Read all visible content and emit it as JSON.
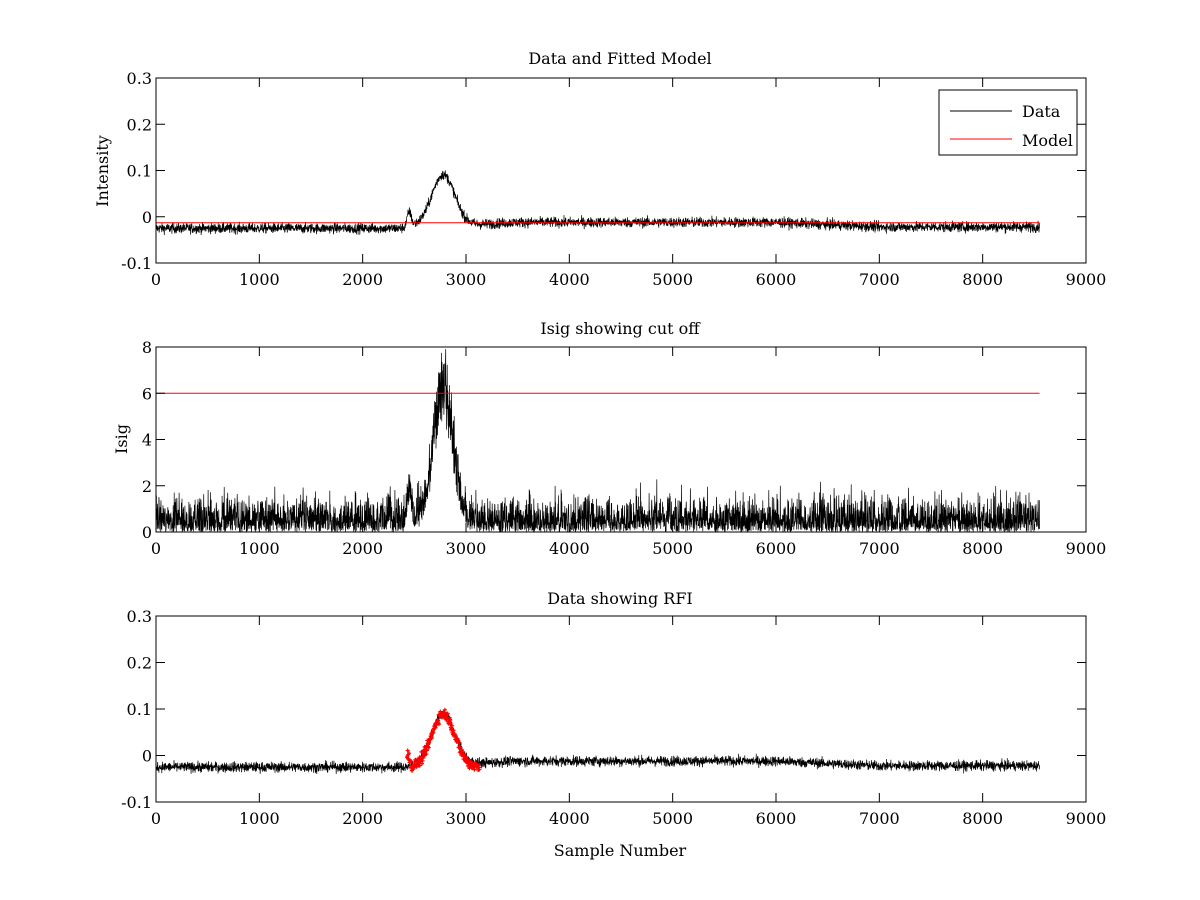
{
  "figure": {
    "background": "#ffffff"
  },
  "chart_data": [
    {
      "type": "line",
      "title": "Data and Fitted Model",
      "xlabel": "",
      "ylabel": "Intensity",
      "xlim": [
        0,
        9000
      ],
      "ylim": [
        -0.1,
        0.3
      ],
      "xticks": [
        0,
        1000,
        2000,
        3000,
        4000,
        5000,
        6000,
        7000,
        8000,
        9000
      ],
      "yticks": [
        -0.1,
        0,
        0.1,
        0.2,
        0.3
      ],
      "ytick_labels": [
        "-0.1",
        "0",
        "0.1",
        "0.2",
        "0.3"
      ],
      "legend": {
        "placement": "top-right",
        "entries": [
          "Data",
          "Model"
        ]
      },
      "series": [
        {
          "name": "Data",
          "color": "#000000",
          "kind": "noisy",
          "x_range": [
            0,
            8550
          ],
          "baseline": [
            [
              0,
              -0.025
            ],
            [
              2400,
              -0.025
            ],
            [
              2450,
              -0.02
            ],
            [
              3000,
              -0.018
            ],
            [
              3500,
              -0.012
            ],
            [
              6000,
              -0.012
            ],
            [
              7000,
              -0.022
            ],
            [
              8550,
              -0.022
            ]
          ],
          "noise_amplitude": 0.01,
          "features": [
            {
              "type": "gaussian",
              "center": 2780,
              "width": 110,
              "height": 0.11
            },
            {
              "type": "gaussian",
              "center": 2450,
              "width": 20,
              "height": 0.03
            }
          ]
        },
        {
          "name": "Model",
          "color": "#ff0000",
          "kind": "segments",
          "points": [
            [
              0,
              -0.013
            ],
            [
              2450,
              -0.013
            ],
            [
              2450,
              -0.013
            ],
            [
              8550,
              -0.013
            ]
          ]
        }
      ]
    },
    {
      "type": "line",
      "title": "Isig showing cut off",
      "xlabel": "",
      "ylabel": "Isig",
      "xlim": [
        0,
        9000
      ],
      "ylim": [
        0,
        8
      ],
      "xticks": [
        0,
        1000,
        2000,
        3000,
        4000,
        5000,
        6000,
        7000,
        8000,
        9000
      ],
      "yticks": [
        0,
        2,
        4,
        6,
        8
      ],
      "ytick_labels": [
        "0",
        "2",
        "4",
        "6",
        "8"
      ],
      "series": [
        {
          "color": "#000000",
          "kind": "noisy-positive",
          "x_range": [
            0,
            8550
          ],
          "noise_amplitude": 1.3,
          "features": [
            {
              "type": "gaussian",
              "center": 2780,
              "width": 90,
              "height": 6.5
            },
            {
              "type": "gaussian",
              "center": 2450,
              "width": 20,
              "height": 1.5
            }
          ]
        },
        {
          "color": "#ff0000",
          "kind": "segments",
          "points": [
            [
              0,
              6
            ],
            [
              8550,
              6
            ]
          ]
        }
      ]
    },
    {
      "type": "line",
      "title": "Data showing RFI",
      "xlabel": "Sample Number",
      "ylabel": "",
      "xlim": [
        0,
        9000
      ],
      "ylim": [
        -0.1,
        0.3
      ],
      "xticks": [
        0,
        1000,
        2000,
        3000,
        4000,
        5000,
        6000,
        7000,
        8000,
        9000
      ],
      "yticks": [
        -0.1,
        0,
        0.1,
        0.2,
        0.3
      ],
      "ytick_labels": [
        "-0.1",
        "0",
        "0.1",
        "0.2",
        "0.3"
      ],
      "series": [
        {
          "color": "#000000",
          "kind": "noisy",
          "x_range": [
            0,
            8550
          ],
          "baseline": [
            [
              0,
              -0.025
            ],
            [
              2400,
              -0.025
            ],
            [
              3000,
              -0.018
            ],
            [
              3500,
              -0.012
            ],
            [
              6000,
              -0.012
            ],
            [
              7000,
              -0.022
            ],
            [
              8550,
              -0.022
            ]
          ],
          "noise_amplitude": 0.01,
          "features": [
            {
              "type": "gaussian",
              "center": 2780,
              "width": 110,
              "height": 0.11
            }
          ]
        },
        {
          "color": "#ff0000",
          "kind": "markers",
          "x_range": [
            2430,
            3130
          ],
          "baseline": [
            [
              2430,
              -0.025
            ],
            [
              3130,
              -0.025
            ]
          ],
          "noise_amplitude": 0.01,
          "features": [
            {
              "type": "gaussian",
              "center": 2780,
              "width": 110,
              "height": 0.115
            },
            {
              "type": "gaussian",
              "center": 2440,
              "width": 12,
              "height": 0.03
            }
          ]
        }
      ]
    }
  ]
}
